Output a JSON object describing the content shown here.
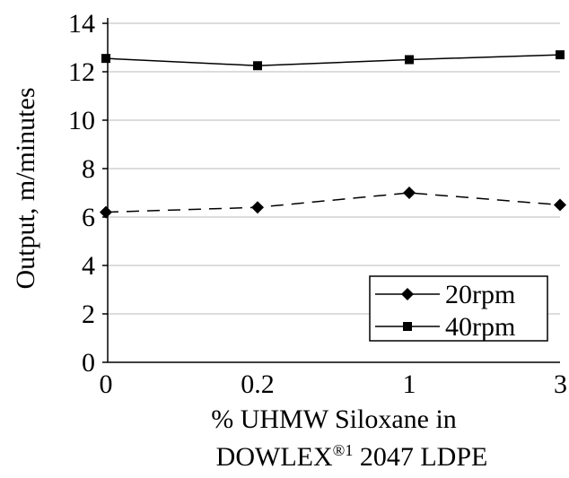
{
  "chart_data": {
    "type": "line",
    "categories": [
      "0",
      "0.2",
      "1",
      "3"
    ],
    "series": [
      {
        "name": "20rpm",
        "values": [
          6.2,
          6.4,
          7.0,
          6.5
        ],
        "marker": "diamond",
        "line_style": "dashed",
        "color": "#000000"
      },
      {
        "name": "40rpm",
        "values": [
          12.55,
          12.25,
          12.5,
          12.7
        ],
        "marker": "square",
        "line_style": "solid",
        "color": "#000000"
      }
    ],
    "ylabel": "Output, m/minutes",
    "xlabel_line1": "% UHMW Siloxane in",
    "xlabel_line2_prefix": "DOWLEX",
    "xlabel_line2_sup": "®1",
    "xlabel_line2_suffix": " 2047 LDPE",
    "ylim": [
      0,
      14
    ],
    "yticks": [
      0,
      2,
      4,
      6,
      8,
      10,
      12,
      14
    ],
    "grid": true,
    "legend_position": "bottom-right",
    "legend_entries": [
      "20rpm",
      "40rpm"
    ]
  }
}
